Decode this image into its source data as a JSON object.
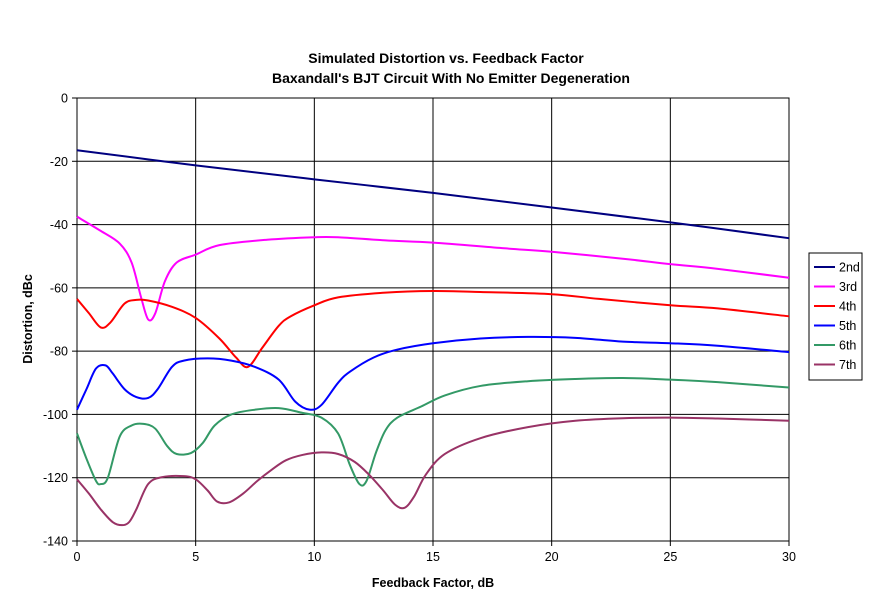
{
  "chart_data": {
    "type": "line",
    "title": "Simulated Distortion vs. Feedback Factor",
    "subtitle": "Baxandall's BJT Circuit With No Emitter Degeneration",
    "xlabel": "Feedback Factor, dB",
    "ylabel": "Distortion, dBc",
    "xlim": [
      0,
      30
    ],
    "ylim": [
      -140,
      0
    ],
    "x_ticks": [
      0,
      5,
      10,
      15,
      20,
      25,
      30
    ],
    "y_ticks": [
      0,
      -20,
      -40,
      -60,
      -80,
      -100,
      -120,
      -140
    ],
    "x_tick_labels": [
      "0",
      "5",
      "10",
      "15",
      "20",
      "25",
      "30"
    ],
    "y_tick_labels": [
      "0",
      "-20",
      "-40",
      "-60",
      "-80",
      "-100",
      "-120",
      "-140"
    ],
    "grid": true,
    "legend_position": "right",
    "series": [
      {
        "name": "2nd",
        "color": "#000080",
        "points": [
          [
            0,
            -16.5
          ],
          [
            5,
            -21.3
          ],
          [
            10,
            -25.7
          ],
          [
            15,
            -30
          ],
          [
            20,
            -34.6
          ],
          [
            25,
            -39.3
          ],
          [
            30,
            -44.3
          ]
        ]
      },
      {
        "name": "3rd",
        "color": "#ff00ff",
        "points": [
          [
            0,
            -37.5
          ],
          [
            1,
            -42
          ],
          [
            1.8,
            -46
          ],
          [
            2.3,
            -52
          ],
          [
            2.7,
            -63
          ],
          [
            3,
            -70
          ],
          [
            3.3,
            -68
          ],
          [
            3.7,
            -58
          ],
          [
            4.2,
            -52
          ],
          [
            5,
            -49.5
          ],
          [
            6,
            -46.5
          ],
          [
            8,
            -44.8
          ],
          [
            10,
            -44
          ],
          [
            11,
            -44
          ],
          [
            13,
            -45
          ],
          [
            15,
            -45.7
          ],
          [
            18,
            -47.5
          ],
          [
            20,
            -48.6
          ],
          [
            23,
            -50.8
          ],
          [
            25,
            -52.5
          ],
          [
            27,
            -54
          ],
          [
            30,
            -56.8
          ]
        ]
      },
      {
        "name": "4th",
        "color": "#ff0000",
        "points": [
          [
            0,
            -63.5
          ],
          [
            0.5,
            -68
          ],
          [
            1,
            -72.5
          ],
          [
            1.4,
            -71
          ],
          [
            2,
            -65
          ],
          [
            2.5,
            -63.8
          ],
          [
            3,
            -64
          ],
          [
            4,
            -66
          ],
          [
            5,
            -69.5
          ],
          [
            6,
            -76
          ],
          [
            6.7,
            -82
          ],
          [
            7.2,
            -85
          ],
          [
            7.8,
            -79
          ],
          [
            8.5,
            -72
          ],
          [
            9,
            -69
          ],
          [
            10,
            -65.5
          ],
          [
            11,
            -63
          ],
          [
            13,
            -61.5
          ],
          [
            15,
            -61
          ],
          [
            17,
            -61.3
          ],
          [
            20,
            -62
          ],
          [
            22,
            -63.5
          ],
          [
            25,
            -65.5
          ],
          [
            27,
            -66.5
          ],
          [
            30,
            -69
          ]
        ]
      },
      {
        "name": "5th",
        "color": "#0000ff",
        "points": [
          [
            0,
            -98.5
          ],
          [
            0.4,
            -92
          ],
          [
            0.8,
            -85.5
          ],
          [
            1.2,
            -84.5
          ],
          [
            1.5,
            -87
          ],
          [
            2,
            -92
          ],
          [
            2.5,
            -94.5
          ],
          [
            3,
            -94.8
          ],
          [
            3.4,
            -92
          ],
          [
            4,
            -85
          ],
          [
            4.5,
            -83
          ],
          [
            5.5,
            -82.3
          ],
          [
            6.5,
            -83
          ],
          [
            7.5,
            -85
          ],
          [
            8.5,
            -89
          ],
          [
            9.2,
            -96
          ],
          [
            9.8,
            -98.5
          ],
          [
            10.3,
            -97
          ],
          [
            11,
            -90
          ],
          [
            11.5,
            -86.5
          ],
          [
            12.5,
            -82
          ],
          [
            13.5,
            -79.5
          ],
          [
            15,
            -77.5
          ],
          [
            17,
            -76
          ],
          [
            19,
            -75.5
          ],
          [
            21,
            -75.8
          ],
          [
            23,
            -77
          ],
          [
            25,
            -77.5
          ],
          [
            27,
            -78.3
          ],
          [
            30,
            -80.3
          ]
        ]
      },
      {
        "name": "6th",
        "color": "#339966",
        "points": [
          [
            0,
            -106
          ],
          [
            0.4,
            -114
          ],
          [
            0.8,
            -121
          ],
          [
            1,
            -122
          ],
          [
            1.3,
            -120
          ],
          [
            1.8,
            -107
          ],
          [
            2.3,
            -103.5
          ],
          [
            2.8,
            -103
          ],
          [
            3.3,
            -104.5
          ],
          [
            3.8,
            -110
          ],
          [
            4.2,
            -112.5
          ],
          [
            4.8,
            -112.2
          ],
          [
            5.3,
            -109
          ],
          [
            5.8,
            -103.5
          ],
          [
            6.5,
            -100
          ],
          [
            7.5,
            -98.5
          ],
          [
            8.5,
            -98
          ],
          [
            9.5,
            -99.5
          ],
          [
            10.3,
            -101
          ],
          [
            11,
            -106
          ],
          [
            11.5,
            -116
          ],
          [
            11.9,
            -122
          ],
          [
            12.2,
            -121
          ],
          [
            12.6,
            -112
          ],
          [
            13,
            -105
          ],
          [
            13.5,
            -101
          ],
          [
            14.5,
            -97.5
          ],
          [
            15.5,
            -94
          ],
          [
            17,
            -91
          ],
          [
            19,
            -89.5
          ],
          [
            21,
            -88.8
          ],
          [
            23,
            -88.5
          ],
          [
            25,
            -89
          ],
          [
            27,
            -89.8
          ],
          [
            30,
            -91.5
          ]
        ]
      },
      {
        "name": "7th",
        "color": "#993366",
        "points": [
          [
            0,
            -120.5
          ],
          [
            0.5,
            -125
          ],
          [
            1,
            -130
          ],
          [
            1.5,
            -134
          ],
          [
            1.9,
            -135
          ],
          [
            2.2,
            -134
          ],
          [
            2.5,
            -130
          ],
          [
            3,
            -122
          ],
          [
            3.6,
            -119.8
          ],
          [
            4.5,
            -119.5
          ],
          [
            5,
            -120.5
          ],
          [
            5.5,
            -124
          ],
          [
            5.9,
            -127.5
          ],
          [
            6.4,
            -127.8
          ],
          [
            7,
            -125
          ],
          [
            7.6,
            -121
          ],
          [
            8.2,
            -117.5
          ],
          [
            8.8,
            -114.5
          ],
          [
            9.5,
            -112.8
          ],
          [
            10.3,
            -112
          ],
          [
            11,
            -112.5
          ],
          [
            11.7,
            -115
          ],
          [
            12.3,
            -119
          ],
          [
            12.9,
            -124
          ],
          [
            13.4,
            -128.5
          ],
          [
            13.8,
            -129.5
          ],
          [
            14.2,
            -126
          ],
          [
            14.7,
            -119
          ],
          [
            15.5,
            -112.5
          ],
          [
            17,
            -107.5
          ],
          [
            19,
            -104
          ],
          [
            21,
            -102
          ],
          [
            23,
            -101.2
          ],
          [
            25,
            -101
          ],
          [
            27,
            -101.3
          ],
          [
            30,
            -102
          ]
        ]
      }
    ]
  }
}
